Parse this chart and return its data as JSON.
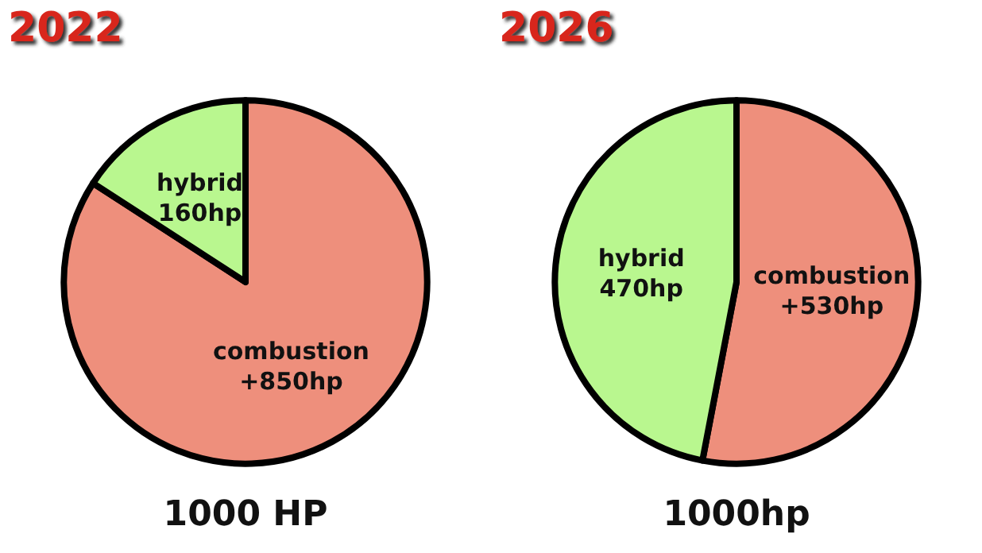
{
  "chart_data": [
    {
      "type": "pie",
      "title": "2022",
      "categories": [
        "combustion",
        "hybrid"
      ],
      "values": [
        850,
        160
      ],
      "value_labels": [
        "+850hp",
        "160hp"
      ],
      "colors": [
        "#ee8f7c",
        "#b9f78f"
      ],
      "annotations": [
        "1000 HP"
      ]
    },
    {
      "type": "pie",
      "title": "2026",
      "categories": [
        "combustion",
        "hybrid"
      ],
      "values": [
        530,
        470
      ],
      "value_labels": [
        "+530hp",
        "470hp"
      ],
      "colors": [
        "#ee8f7c",
        "#b9f78f"
      ],
      "annotations": [
        "1000hp"
      ]
    }
  ]
}
